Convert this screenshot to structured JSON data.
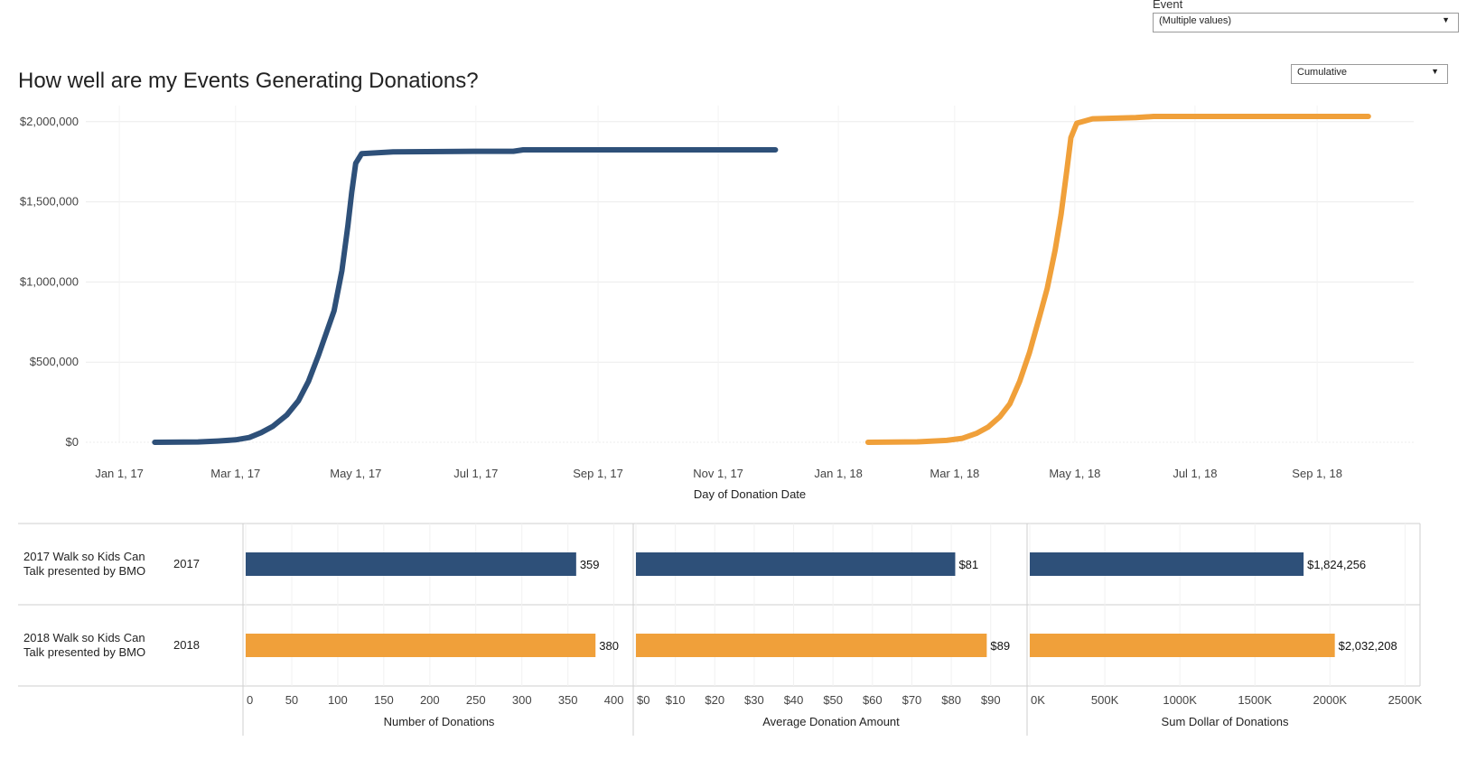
{
  "filter": {
    "label": "Event",
    "value": "(Multiple values)"
  },
  "mode_select": {
    "value": "Cumulative"
  },
  "title": "How well are my Events Generating Donations?",
  "colors": {
    "series_2017": "#2e5079",
    "series_2018": "#f0a03a",
    "grid": "#ececec",
    "axis_text": "#444444"
  },
  "chart_data": [
    {
      "type": "line",
      "title": "How well are my Events Generating Donations?",
      "xlabel": "Day of Donation Date",
      "ylabel": "",
      "y_tick_labels": [
        "$0",
        "$500,000",
        "$1,000,000",
        "$1,500,000",
        "$2,000,000"
      ],
      "y_ticks": [
        0,
        500000,
        1000000,
        1500000,
        2000000
      ],
      "ylim": [
        0,
        2100000
      ],
      "x_tick_labels": [
        "Jan 1, 17",
        "Mar 1, 17",
        "May 1, 17",
        "Jul 1, 17",
        "Sep 1, 17",
        "Nov 1, 17",
        "Jan 1, 18",
        "Mar 1, 18",
        "May 1, 18",
        "Jul 1, 18",
        "Sep 1, 18"
      ],
      "x_ticks": [
        "2017-01-01",
        "2017-03-01",
        "2017-05-01",
        "2017-07-01",
        "2017-09-01",
        "2017-11-01",
        "2018-01-01",
        "2018-03-01",
        "2018-05-01",
        "2018-07-01",
        "2018-09-01"
      ],
      "xlim": [
        "2016-12-15",
        "2018-10-20"
      ],
      "grid": true,
      "series": [
        {
          "name": "2017",
          "points": [
            [
              "2017-01-19",
              0
            ],
            [
              "2017-02-10",
              2000
            ],
            [
              "2017-02-20",
              8000
            ],
            [
              "2017-03-01",
              15000
            ],
            [
              "2017-03-08",
              30000
            ],
            [
              "2017-03-14",
              60000
            ],
            [
              "2017-03-20",
              100000
            ],
            [
              "2017-03-27",
              170000
            ],
            [
              "2017-04-02",
              260000
            ],
            [
              "2017-04-07",
              380000
            ],
            [
              "2017-04-12",
              540000
            ],
            [
              "2017-04-16",
              680000
            ],
            [
              "2017-04-20",
              820000
            ],
            [
              "2017-04-24",
              1070000
            ],
            [
              "2017-04-27",
              1350000
            ],
            [
              "2017-04-29",
              1560000
            ],
            [
              "2017-05-01",
              1740000
            ],
            [
              "2017-05-04",
              1800000
            ],
            [
              "2017-05-20",
              1812000
            ],
            [
              "2017-06-30",
              1815000
            ],
            [
              "2017-07-20",
              1815000
            ],
            [
              "2017-07-25",
              1824256
            ],
            [
              "2017-11-30",
              1824256
            ]
          ]
        },
        {
          "name": "2018",
          "points": [
            [
              "2018-01-16",
              0
            ],
            [
              "2018-02-10",
              3000
            ],
            [
              "2018-02-25",
              12000
            ],
            [
              "2018-03-05",
              25000
            ],
            [
              "2018-03-12",
              55000
            ],
            [
              "2018-03-18",
              95000
            ],
            [
              "2018-03-24",
              160000
            ],
            [
              "2018-03-29",
              240000
            ],
            [
              "2018-04-03",
              380000
            ],
            [
              "2018-04-08",
              560000
            ],
            [
              "2018-04-13",
              780000
            ],
            [
              "2018-04-17",
              960000
            ],
            [
              "2018-04-21",
              1200000
            ],
            [
              "2018-04-24",
              1420000
            ],
            [
              "2018-04-27",
              1700000
            ],
            [
              "2018-04-29",
              1900000
            ],
            [
              "2018-05-02",
              1990000
            ],
            [
              "2018-05-10",
              2018000
            ],
            [
              "2018-06-01",
              2025000
            ],
            [
              "2018-06-10",
              2032208
            ],
            [
              "2018-09-27",
              2032208
            ]
          ]
        }
      ]
    },
    {
      "type": "bar",
      "rows": [
        {
          "event": "2017 Walk so Kids Can Talk presented by BMO",
          "event_line1": "2017 Walk so Kids Can",
          "event_line2": "Talk presented by BMO",
          "year": "2017",
          "series": "2017"
        },
        {
          "event": "2018 Walk so Kids Can Talk presented by BMO",
          "event_line1": "2018 Walk so Kids Can",
          "event_line2": "Talk presented by BMO",
          "year": "2018",
          "series": "2018"
        }
      ],
      "panels": [
        {
          "xlabel": "Number of Donations",
          "xlim": [
            0,
            420
          ],
          "ticks": [
            0,
            50,
            100,
            150,
            200,
            250,
            300,
            350,
            400
          ],
          "tick_labels": [
            "0",
            "50",
            "100",
            "150",
            "200",
            "250",
            "300",
            "350",
            "400"
          ],
          "values": [
            359,
            380
          ],
          "value_labels": [
            "359",
            "380"
          ]
        },
        {
          "xlabel": "Average Donation Amount",
          "xlim": [
            0,
            99
          ],
          "ticks": [
            0,
            10,
            20,
            30,
            40,
            50,
            60,
            70,
            80,
            90
          ],
          "tick_labels": [
            "$0",
            "$10",
            "$20",
            "$30",
            "$40",
            "$50",
            "$60",
            "$70",
            "$80",
            "$90"
          ],
          "values": [
            81,
            89
          ],
          "value_labels": [
            "$81",
            "$89"
          ]
        },
        {
          "xlabel": "Sum Dollar of Donations",
          "xlim": [
            0,
            2600000
          ],
          "ticks": [
            0,
            500000,
            1000000,
            1500000,
            2000000,
            2500000
          ],
          "tick_labels": [
            "0K",
            "500K",
            "1000K",
            "1500K",
            "2000K",
            "2500K"
          ],
          "values": [
            1824256,
            2032208
          ],
          "value_labels": [
            "$1,824,256",
            "$2,032,208"
          ]
        }
      ]
    }
  ]
}
